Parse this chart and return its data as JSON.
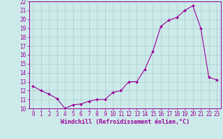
{
  "x": [
    0,
    1,
    2,
    3,
    4,
    5,
    6,
    7,
    8,
    9,
    10,
    11,
    12,
    13,
    14,
    15,
    16,
    17,
    18,
    19,
    20,
    21,
    22,
    23
  ],
  "y": [
    12.5,
    12.0,
    11.6,
    11.1,
    10.0,
    10.4,
    10.5,
    10.8,
    11.0,
    11.0,
    11.8,
    12.0,
    13.0,
    13.0,
    14.4,
    16.4,
    19.2,
    19.9,
    20.2,
    21.0,
    21.5,
    19.0,
    13.5,
    13.2
  ],
  "line_color": "#990099",
  "marker": "D",
  "marker_size": 2.0,
  "bg_color": "#cdeaea",
  "grid_color": "#aacccc",
  "xlabel": "Windchill (Refroidissement éolien,°C)",
  "xlim": [
    -0.5,
    23.5
  ],
  "ylim": [
    10,
    22
  ],
  "yticks": [
    10,
    11,
    12,
    13,
    14,
    15,
    16,
    17,
    18,
    19,
    20,
    21,
    22
  ],
  "xticks": [
    0,
    1,
    2,
    3,
    4,
    5,
    6,
    7,
    8,
    9,
    10,
    11,
    12,
    13,
    14,
    15,
    16,
    17,
    18,
    19,
    20,
    21,
    22,
    23
  ],
  "label_color": "#990099",
  "tick_color": "#990099",
  "font": "monospace",
  "tick_fontsize": 5.5,
  "label_fontsize": 6.0
}
